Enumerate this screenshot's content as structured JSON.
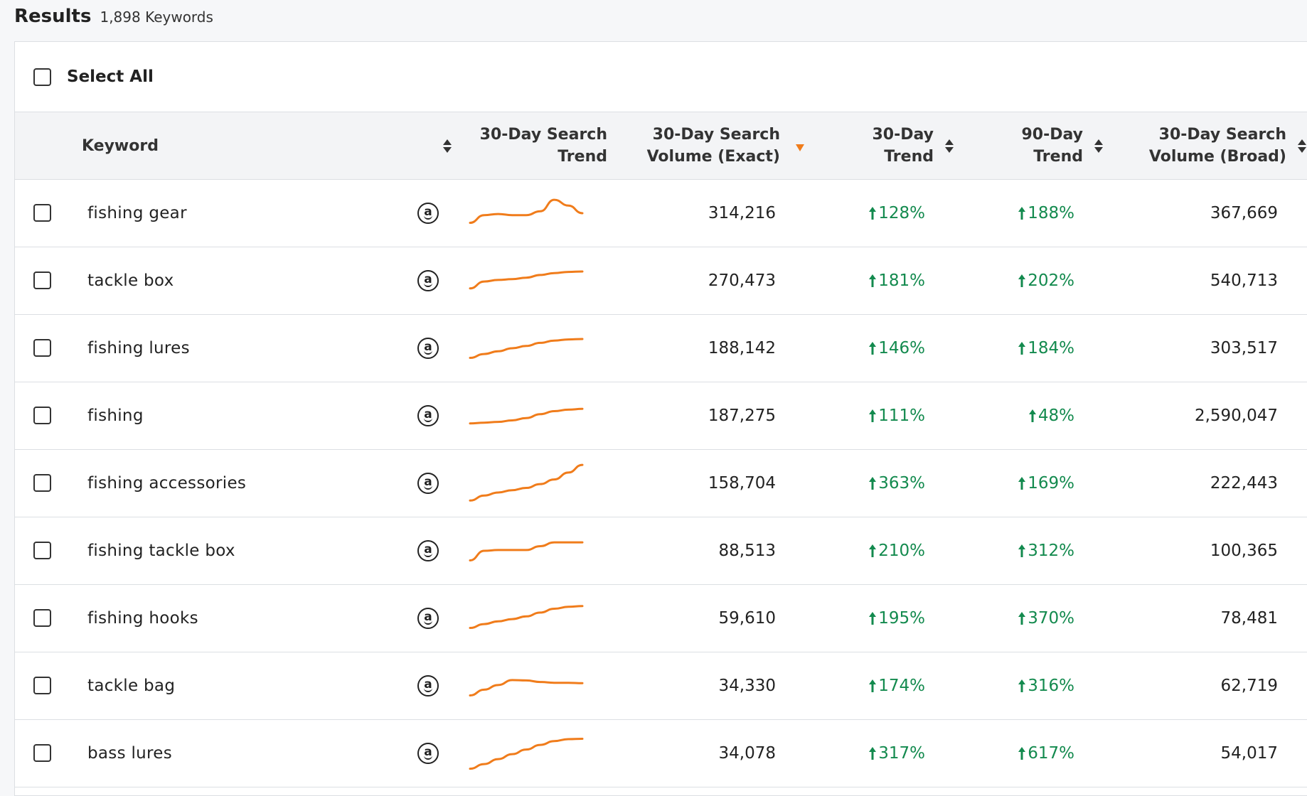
{
  "results": {
    "title": "Results",
    "count": "1,898 Keywords"
  },
  "select_all_label": "Select All",
  "columns": {
    "keyword": "Keyword",
    "search_trend": "30-Day Search\nTrend",
    "volume_exact": "30-Day Search\nVolume (Exact)",
    "trend_30": "30-Day\nTrend",
    "trend_90": "90-Day\nTrend",
    "volume_broad": "30-Day Search\nVolume (Broad)"
  },
  "colors": {
    "sparkline": "#f07c1b",
    "trend_up": "#138a4e",
    "sort_active": "#f07c1b"
  },
  "icons": {
    "marketplace": "amazon-icon",
    "trend_direction": "arrow-up-icon"
  },
  "rows": [
    {
      "keyword": "fishing gear",
      "volume_exact": "314,216",
      "trend_30": "128%",
      "trend_90": "188%",
      "volume_broad": "367,669",
      "sparkline": [
        0.25,
        0.45,
        0.48,
        0.45,
        0.45,
        0.55,
        0.85,
        0.7,
        0.5
      ]
    },
    {
      "keyword": "tackle box",
      "volume_exact": "270,473",
      "trend_30": "181%",
      "trend_90": "202%",
      "volume_broad": "540,713",
      "sparkline": [
        0.3,
        0.48,
        0.52,
        0.54,
        0.58,
        0.65,
        0.7,
        0.73,
        0.74
      ]
    },
    {
      "keyword": "fishing lures",
      "volume_exact": "188,142",
      "trend_30": "146%",
      "trend_90": "184%",
      "volume_broad": "303,517",
      "sparkline": [
        0.25,
        0.35,
        0.42,
        0.5,
        0.56,
        0.64,
        0.7,
        0.73,
        0.74
      ]
    },
    {
      "keyword": "fishing",
      "volume_exact": "187,275",
      "trend_30": "111%",
      "trend_90": "48%",
      "volume_broad": "2,590,047",
      "sparkline": [
        0.3,
        0.32,
        0.34,
        0.38,
        0.44,
        0.54,
        0.62,
        0.66,
        0.68
      ]
    },
    {
      "keyword": "fishing accessories",
      "volume_exact": "158,704",
      "trend_30": "363%",
      "trend_90": "169%",
      "volume_broad": "222,443",
      "sparkline": [
        0.05,
        0.18,
        0.26,
        0.32,
        0.38,
        0.48,
        0.6,
        0.78,
        0.98
      ]
    },
    {
      "keyword": "fishing tackle box",
      "volume_exact": "88,513",
      "trend_30": "210%",
      "trend_90": "312%",
      "volume_broad": "100,365",
      "sparkline": [
        0.25,
        0.5,
        0.52,
        0.52,
        0.52,
        0.62,
        0.72,
        0.72,
        0.72
      ]
    },
    {
      "keyword": "fishing hooks",
      "volume_exact": "59,610",
      "trend_30": "195%",
      "trend_90": "370%",
      "volume_broad": "78,481",
      "sparkline": [
        0.25,
        0.35,
        0.42,
        0.48,
        0.55,
        0.65,
        0.75,
        0.8,
        0.82
      ]
    },
    {
      "keyword": "tackle bag",
      "volume_exact": "34,330",
      "trend_30": "174%",
      "trend_90": "316%",
      "volume_broad": "62,719",
      "sparkline": [
        0.25,
        0.4,
        0.52,
        0.65,
        0.64,
        0.6,
        0.58,
        0.58,
        0.57
      ]
    },
    {
      "keyword": "bass lures",
      "volume_exact": "34,078",
      "trend_30": "317%",
      "trend_90": "617%",
      "volume_broad": "54,017",
      "sparkline": [
        0.1,
        0.22,
        0.35,
        0.48,
        0.6,
        0.72,
        0.82,
        0.87,
        0.88
      ]
    }
  ]
}
